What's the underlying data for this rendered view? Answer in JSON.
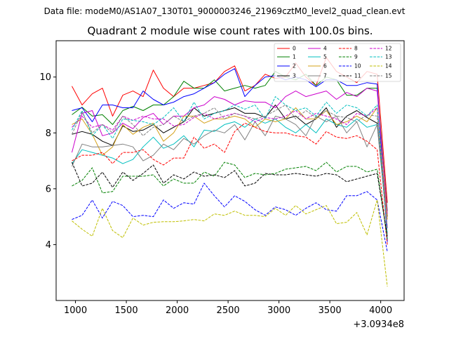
{
  "chart_data": {
    "type": "line",
    "suptitle": "Data file: modeM0/AS1A07_130T01_9000003246_21969cztM0_level2_quad_clean.evt",
    "title": "Quadrant 2 module wise count rates with 100.0s bins.",
    "xlabel": "",
    "ylabel": "",
    "x_offset_label": "+3.0934e8",
    "xlim": [
      810,
      4230
    ],
    "ylim": [
      2.0,
      11.3
    ],
    "xticks": [
      1000,
      1500,
      2000,
      2500,
      3000,
      3500,
      4000
    ],
    "yticks": [
      4,
      6,
      8,
      10
    ],
    "legend_position": "top-right",
    "x": [
      965,
      1065,
      1165,
      1265,
      1365,
      1465,
      1565,
      1665,
      1765,
      1865,
      1965,
      2065,
      2165,
      2265,
      2365,
      2465,
      2565,
      2665,
      2765,
      2865,
      2965,
      3065,
      3165,
      3265,
      3365,
      3465,
      3565,
      3665,
      3765,
      3865,
      3965,
      4065
    ],
    "series": [
      {
        "name": "0",
        "color": "#ff0000",
        "dash": "solid",
        "values": [
          9.67,
          9.0,
          9.4,
          9.6,
          8.6,
          9.35,
          9.5,
          9.3,
          10.25,
          9.6,
          9.3,
          9.6,
          9.6,
          9.7,
          9.8,
          10.2,
          10.4,
          9.5,
          9.7,
          10.1,
          9.95,
          10.0,
          10.5,
          10.0,
          9.7,
          10.7,
          10.2,
          10.0,
          9.8,
          10.2,
          10.1,
          5.5
        ]
      },
      {
        "name": "1",
        "color": "#008000",
        "dash": "solid",
        "values": [
          8.65,
          8.92,
          8.6,
          8.65,
          8.3,
          8.8,
          8.95,
          8.8,
          9.0,
          9.0,
          9.3,
          9.85,
          9.6,
          9.6,
          9.9,
          9.5,
          9.6,
          9.7,
          9.6,
          9.7,
          10.2,
          10.0,
          9.9,
          10.1,
          9.7,
          10.0,
          9.9,
          9.35,
          9.35,
          9.6,
          9.6,
          5.2
        ]
      },
      {
        "name": "2",
        "color": "#0000ff",
        "dash": "solid",
        "values": [
          8.8,
          8.9,
          8.4,
          9.0,
          9.0,
          8.9,
          8.9,
          9.5,
          9.2,
          9.0,
          9.1,
          9.3,
          9.4,
          9.6,
          9.8,
          10.1,
          10.3,
          9.3,
          9.7,
          10.0,
          10.05,
          9.9,
          10.0,
          9.9,
          9.65,
          9.9,
          9.9,
          9.7,
          9.7,
          9.8,
          9.75,
          4.1
        ]
      },
      {
        "name": "3",
        "color": "#000000",
        "dash": "solid",
        "values": [
          7.95,
          8.05,
          7.95,
          7.7,
          7.55,
          8.25,
          8.05,
          8.1,
          8.3,
          8.0,
          8.2,
          8.4,
          8.9,
          8.6,
          8.7,
          8.8,
          8.9,
          8.7,
          8.7,
          8.55,
          9.0,
          8.5,
          8.6,
          8.3,
          8.5,
          8.9,
          8.2,
          8.6,
          8.8,
          8.55,
          8.35,
          5.0
        ]
      },
      {
        "name": "4",
        "color": "#cc00cc",
        "dash": "solid",
        "values": [
          7.3,
          8.7,
          8.8,
          7.9,
          8.0,
          8.35,
          8.15,
          8.55,
          8.7,
          8.3,
          8.6,
          8.6,
          8.9,
          9.0,
          9.3,
          9.2,
          9.0,
          9.15,
          9.1,
          9.1,
          8.9,
          9.3,
          9.5,
          9.3,
          9.4,
          9.5,
          9.2,
          9.45,
          9.3,
          9.6,
          9.5,
          5.1
        ]
      },
      {
        "name": "5",
        "color": "#00bfbf",
        "dash": "solid",
        "values": [
          6.9,
          7.4,
          7.3,
          7.2,
          7.1,
          6.9,
          7.05,
          7.5,
          7.85,
          7.45,
          7.6,
          7.9,
          7.5,
          8.1,
          8.05,
          8.3,
          8.4,
          8.2,
          8.5,
          8.35,
          8.5,
          8.2,
          8.0,
          8.3,
          8.0,
          8.5,
          8.3,
          8.2,
          8.5,
          8.2,
          8.3,
          4.6
        ]
      },
      {
        "name": "6",
        "color": "#d4a017",
        "dash": "solid",
        "values": [
          8.3,
          8.5,
          7.95,
          7.2,
          7.5,
          8.3,
          7.95,
          8.2,
          8.35,
          7.7,
          8.0,
          8.6,
          8.6,
          8.35,
          8.5,
          8.5,
          8.6,
          8.5,
          8.2,
          8.5,
          8.4,
          8.5,
          8.9,
          8.5,
          8.5,
          8.8,
          8.3,
          8.4,
          8.6,
          8.4,
          8.9,
          4.9
        ]
      },
      {
        "name": "7",
        "color": "#808080",
        "dash": "solid",
        "values": [
          6.8,
          7.6,
          7.5,
          7.5,
          7.55,
          7.6,
          7.5,
          7.0,
          7.2,
          7.6,
          7.4,
          7.8,
          7.6,
          7.9,
          8.1,
          8.0,
          8.3,
          7.75,
          8.4,
          7.9,
          8.6,
          8.5,
          8.3,
          7.9,
          8.6,
          8.4,
          8.6,
          8.0,
          8.4,
          7.5,
          8.3,
          4.6
        ]
      },
      {
        "name": "8",
        "color": "#ff0000",
        "dash": "dashed",
        "values": [
          7.0,
          7.2,
          7.2,
          7.3,
          6.9,
          7.3,
          7.3,
          7.4,
          7.05,
          6.85,
          7.1,
          7.1,
          7.85,
          7.45,
          7.6,
          7.3,
          8.05,
          8.35,
          8.2,
          8.05,
          8.0,
          8.0,
          7.9,
          7.85,
          7.6,
          8.05,
          7.85,
          7.8,
          7.9,
          7.7,
          7.4,
          4.0
        ]
      },
      {
        "name": "9",
        "color": "#008000",
        "dash": "dashed",
        "values": [
          6.1,
          6.3,
          6.75,
          5.85,
          5.9,
          6.45,
          6.45,
          6.45,
          6.5,
          6.1,
          6.35,
          6.2,
          6.2,
          6.6,
          6.45,
          6.95,
          6.85,
          6.4,
          6.55,
          6.5,
          6.55,
          6.7,
          6.75,
          6.8,
          6.65,
          6.95,
          6.6,
          6.8,
          6.8,
          6.6,
          6.7,
          4.2
        ]
      },
      {
        "name": "10",
        "color": "#0000ff",
        "dash": "dashed",
        "values": [
          4.9,
          5.05,
          5.6,
          4.95,
          5.55,
          5.4,
          5.0,
          5.05,
          5.0,
          5.6,
          5.3,
          5.5,
          5.45,
          6.2,
          5.75,
          5.35,
          5.75,
          5.55,
          5.25,
          5.05,
          5.35,
          5.25,
          5.05,
          5.3,
          5.5,
          5.25,
          5.2,
          5.75,
          5.75,
          5.9,
          5.6,
          3.75
        ]
      },
      {
        "name": "11",
        "color": "#000000",
        "dash": "dashed",
        "values": [
          6.95,
          6.1,
          6.2,
          6.6,
          6.05,
          6.6,
          6.3,
          6.55,
          6.85,
          6.2,
          6.5,
          6.35,
          6.6,
          6.45,
          6.5,
          6.4,
          6.65,
          6.1,
          6.2,
          6.55,
          6.5,
          6.5,
          6.55,
          6.5,
          6.45,
          6.55,
          6.5,
          6.25,
          6.35,
          6.45,
          6.55,
          4.3
        ]
      },
      {
        "name": "12",
        "color": "#cc00cc",
        "dash": "dashed",
        "values": [
          8.2,
          8.6,
          8.2,
          8.3,
          8.1,
          8.6,
          8.45,
          8.6,
          8.5,
          8.5,
          8.25,
          8.3,
          8.55,
          8.7,
          8.5,
          8.6,
          8.7,
          8.6,
          8.4,
          8.55,
          8.5,
          8.6,
          8.8,
          8.5,
          8.7,
          8.6,
          8.5,
          8.3,
          8.7,
          8.6,
          8.9,
          4.6
        ]
      },
      {
        "name": "13",
        "color": "#00bfbf",
        "dash": "dashed",
        "values": [
          8.1,
          8.8,
          7.9,
          8.3,
          7.8,
          8.5,
          8.45,
          8.4,
          8.3,
          8.55,
          8.9,
          8.4,
          9.1,
          8.5,
          8.7,
          8.8,
          9.0,
          8.85,
          9.0,
          8.5,
          9.3,
          9.0,
          8.8,
          8.9,
          8.6,
          9.1,
          8.7,
          9.0,
          8.9,
          8.6,
          9.0,
          4.4
        ]
      },
      {
        "name": "14",
        "color": "#bfbf00",
        "dash": "dashed",
        "values": [
          4.85,
          4.55,
          4.3,
          5.3,
          4.5,
          4.25,
          4.95,
          4.7,
          4.8,
          4.82,
          4.82,
          4.85,
          4.9,
          4.85,
          5.1,
          5.05,
          5.2,
          5.05,
          5.05,
          5.0,
          5.3,
          5.05,
          5.4,
          5.1,
          5.25,
          5.4,
          4.75,
          4.8,
          5.15,
          4.35,
          5.6,
          2.5
        ]
      },
      {
        "name": "15",
        "color": "#808080",
        "dash": "dashed",
        "values": [
          7.95,
          8.75,
          8.0,
          8.3,
          8.0,
          8.6,
          8.3,
          7.9,
          8.2,
          8.3,
          8.6,
          8.4,
          8.6,
          8.7,
          8.9,
          8.5,
          8.7,
          8.6,
          8.5,
          8.6,
          8.8,
          9.0,
          8.5,
          8.8,
          8.55,
          8.8,
          8.6,
          8.55,
          8.4,
          8.65,
          8.6,
          4.35
        ]
      }
    ]
  }
}
